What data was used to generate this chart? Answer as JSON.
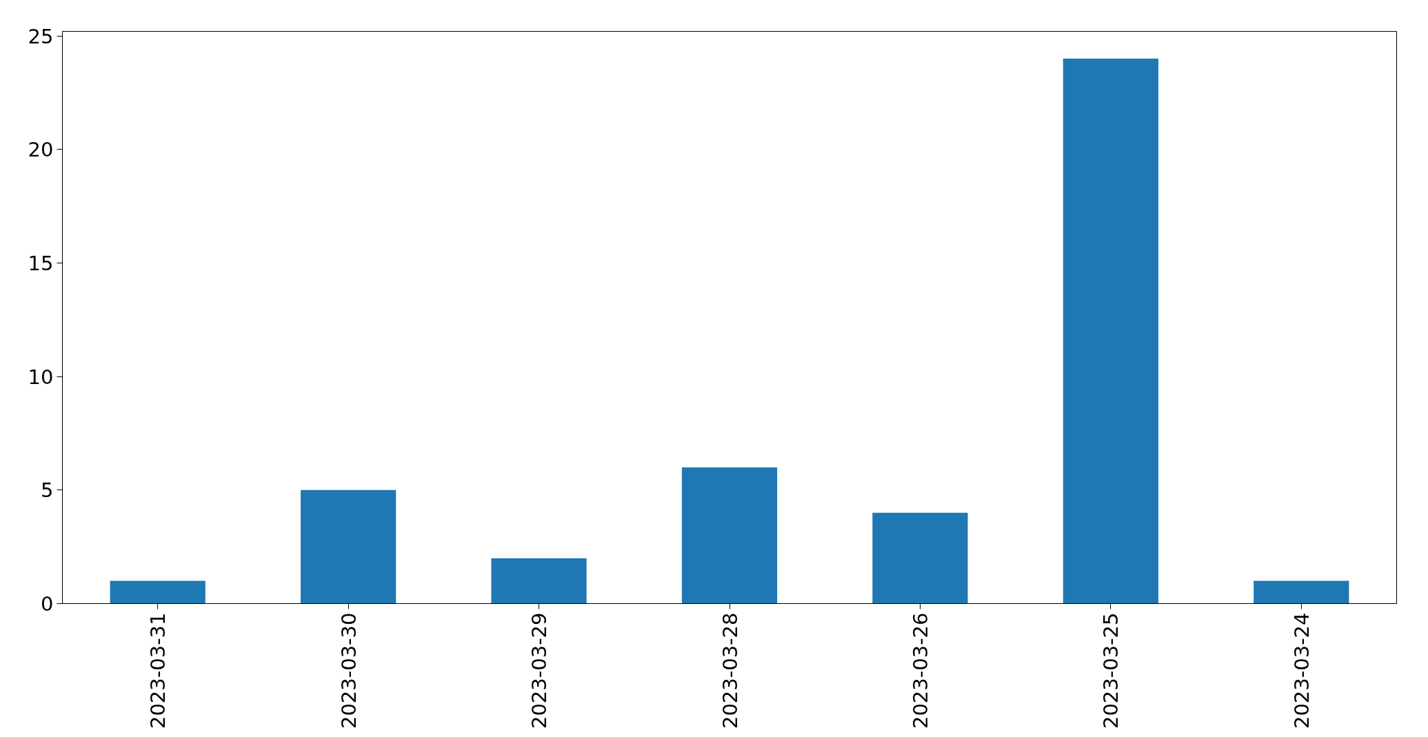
{
  "chart_data": {
    "type": "bar",
    "categories": [
      "2023-03-31",
      "2023-03-30",
      "2023-03-29",
      "2023-03-28",
      "2023-03-26",
      "2023-03-25",
      "2023-03-24"
    ],
    "values": [
      1,
      5,
      2,
      6,
      4,
      24,
      1
    ],
    "color": "#1f77b4",
    "ylim": [
      0,
      25.2
    ],
    "yticks": [
      0,
      5,
      10,
      15,
      20,
      25
    ]
  }
}
